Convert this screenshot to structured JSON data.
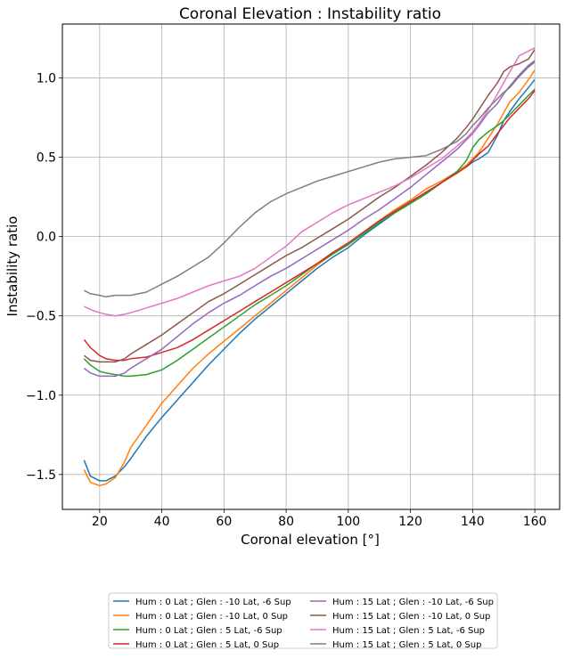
{
  "chart_data": {
    "type": "line",
    "title": "Coronal Elevation : Instability ratio",
    "xlabel": "Coronal elevation [°]",
    "ylabel": "Instability ratio",
    "xlim": [
      8,
      168
    ],
    "ylim": [
      -1.72,
      1.34
    ],
    "xticks": [
      20,
      40,
      60,
      80,
      100,
      120,
      140,
      160
    ],
    "xtick_labels": [
      "20",
      "40",
      "60",
      "80",
      "100",
      "120",
      "140",
      "160"
    ],
    "yticks": [
      -1.5,
      -1.0,
      -0.5,
      0.0,
      0.5,
      1.0
    ],
    "ytick_labels": [
      "−1.5",
      "−1.0",
      "−0.5",
      "0.0",
      "0.5",
      "1.0"
    ],
    "grid": true,
    "legend_position": "below chart, two columns",
    "x": [
      15,
      17,
      20,
      22,
      25,
      28,
      30,
      35,
      40,
      45,
      50,
      55,
      60,
      65,
      70,
      75,
      80,
      85,
      90,
      95,
      100,
      105,
      110,
      115,
      120,
      125,
      130,
      135,
      138,
      140,
      142,
      145,
      148,
      150,
      152,
      155,
      158,
      160
    ],
    "series": [
      {
        "name": "Hum : 0 Lat ; Glen : -10 Lat, -6 Sup",
        "color": "#1f77b4",
        "values": [
          -1.41,
          -1.51,
          -1.54,
          -1.54,
          -1.51,
          -1.45,
          -1.4,
          -1.26,
          -1.14,
          -1.03,
          -0.92,
          -0.81,
          -0.71,
          -0.61,
          -0.52,
          -0.44,
          -0.36,
          -0.28,
          -0.2,
          -0.13,
          -0.07,
          0.01,
          0.08,
          0.15,
          0.21,
          0.27,
          0.34,
          0.41,
          0.44,
          0.47,
          0.49,
          0.53,
          0.64,
          0.73,
          0.79,
          0.87,
          0.94,
          0.99
        ]
      },
      {
        "name": "Hum : 0 Lat ; Glen : -10 Lat, 0 Sup",
        "color": "#ff7f0e",
        "values": [
          -1.47,
          -1.55,
          -1.57,
          -1.56,
          -1.52,
          -1.42,
          -1.33,
          -1.19,
          -1.05,
          -0.94,
          -0.83,
          -0.74,
          -0.66,
          -0.58,
          -0.5,
          -0.42,
          -0.34,
          -0.26,
          -0.18,
          -0.11,
          -0.04,
          0.03,
          0.1,
          0.17,
          0.23,
          0.3,
          0.35,
          0.41,
          0.45,
          0.49,
          0.53,
          0.62,
          0.71,
          0.78,
          0.85,
          0.91,
          0.99,
          1.05
        ]
      },
      {
        "name": "Hum : 0 Lat ; Glen : 5 Lat, -6 Sup",
        "color": "#2ca02c",
        "values": [
          -0.77,
          -0.81,
          -0.85,
          -0.86,
          -0.87,
          -0.88,
          -0.88,
          -0.87,
          -0.84,
          -0.78,
          -0.71,
          -0.64,
          -0.57,
          -0.5,
          -0.43,
          -0.37,
          -0.31,
          -0.24,
          -0.17,
          -0.11,
          -0.05,
          0.02,
          0.09,
          0.15,
          0.21,
          0.27,
          0.34,
          0.41,
          0.48,
          0.56,
          0.61,
          0.66,
          0.7,
          0.73,
          0.77,
          0.83,
          0.89,
          0.93
        ]
      },
      {
        "name": "Hum : 0 Lat ; Glen : 5 Lat, 0 Sup",
        "color": "#d62728",
        "values": [
          -0.65,
          -0.7,
          -0.75,
          -0.77,
          -0.78,
          -0.78,
          -0.77,
          -0.76,
          -0.73,
          -0.7,
          -0.65,
          -0.59,
          -0.53,
          -0.47,
          -0.41,
          -0.35,
          -0.29,
          -0.23,
          -0.17,
          -0.1,
          -0.04,
          0.03,
          0.1,
          0.16,
          0.22,
          0.28,
          0.34,
          0.4,
          0.44,
          0.48,
          0.52,
          0.57,
          0.65,
          0.7,
          0.75,
          0.81,
          0.87,
          0.92
        ]
      },
      {
        "name": "Hum : 15 Lat ; Glen : -10 Lat, -6 Sup",
        "color": "#9467bd",
        "values": [
          -0.83,
          -0.86,
          -0.88,
          -0.88,
          -0.88,
          -0.86,
          -0.83,
          -0.77,
          -0.71,
          -0.63,
          -0.55,
          -0.48,
          -0.42,
          -0.37,
          -0.31,
          -0.25,
          -0.2,
          -0.14,
          -0.08,
          -0.02,
          0.04,
          0.11,
          0.17,
          0.24,
          0.31,
          0.39,
          0.47,
          0.55,
          0.61,
          0.65,
          0.7,
          0.78,
          0.84,
          0.9,
          0.95,
          1.02,
          1.08,
          1.11
        ]
      },
      {
        "name": "Hum : 15 Lat ; Glen : -10 Lat, 0 Sup",
        "color": "#8c564b",
        "values": [
          -0.75,
          -0.78,
          -0.79,
          -0.79,
          -0.79,
          -0.77,
          -0.74,
          -0.68,
          -0.62,
          -0.55,
          -0.48,
          -0.41,
          -0.36,
          -0.3,
          -0.24,
          -0.18,
          -0.12,
          -0.07,
          -0.01,
          0.05,
          0.11,
          0.18,
          0.25,
          0.31,
          0.38,
          0.45,
          0.53,
          0.62,
          0.69,
          0.74,
          0.8,
          0.89,
          0.97,
          1.04,
          1.07,
          1.09,
          1.12,
          1.18
        ]
      },
      {
        "name": "Hum : 15 Lat ; Glen : 5 Lat, -6 Sup",
        "color": "#e377c2",
        "values": [
          -0.44,
          -0.46,
          -0.48,
          -0.49,
          -0.5,
          -0.49,
          -0.48,
          -0.45,
          -0.42,
          -0.39,
          -0.35,
          -0.31,
          -0.28,
          -0.25,
          -0.2,
          -0.13,
          -0.06,
          0.03,
          0.09,
          0.15,
          0.2,
          0.24,
          0.28,
          0.32,
          0.37,
          0.43,
          0.49,
          0.57,
          0.62,
          0.66,
          0.71,
          0.8,
          0.9,
          0.97,
          1.04,
          1.14,
          1.17,
          1.19
        ]
      },
      {
        "name": "Hum : 15 Lat ; Glen : 5 Lat, 0 Sup",
        "color": "#7f7f7f",
        "values": [
          -0.34,
          -0.36,
          -0.37,
          -0.38,
          -0.37,
          -0.37,
          -0.37,
          -0.35,
          -0.3,
          -0.25,
          -0.19,
          -0.13,
          -0.04,
          0.06,
          0.15,
          0.22,
          0.27,
          0.31,
          0.35,
          0.38,
          0.41,
          0.44,
          0.47,
          0.49,
          0.5,
          0.51,
          0.55,
          0.6,
          0.65,
          0.7,
          0.74,
          0.81,
          0.87,
          0.91,
          0.94,
          1.01,
          1.07,
          1.1
        ]
      }
    ]
  }
}
